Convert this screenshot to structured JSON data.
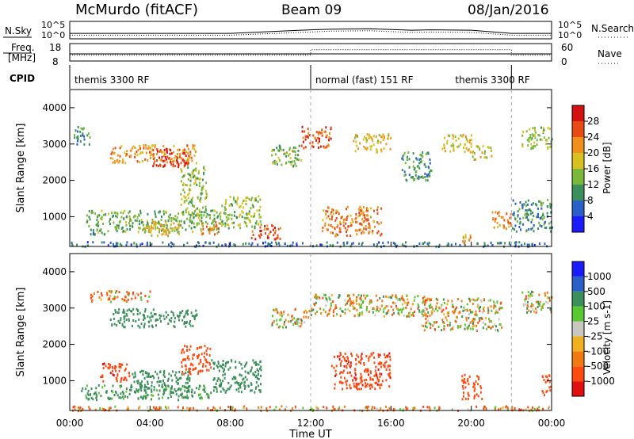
{
  "header": {
    "station": "McMurdo (fitACF)",
    "beam": "Beam 09",
    "date": "08/Jan/2016"
  },
  "side_labels": {
    "nsky": "N.Sky",
    "freq_line1": "Freq.",
    "freq_line2": "[MHz]",
    "cpid": "CPID",
    "nsearch": "N.Search",
    "nave": "Nave"
  },
  "noise_ticks": {
    "top": "10^5",
    "bottom": "10^0"
  },
  "freq_ticks": {
    "top": "18",
    "bottom": "8"
  },
  "nave_ticks": {
    "top": "60",
    "bottom": "0"
  },
  "cpid_segments": [
    {
      "label": "themis 3300 RF",
      "start_hour": 0,
      "end_hour": 12
    },
    {
      "label": "normal (fast) 151 RF",
      "start_hour": 12,
      "end_hour": 22
    },
    {
      "label": "themis 3300 RF",
      "start_hour": 22,
      "end_hour": 24
    }
  ],
  "xaxis": {
    "title": "Time UT",
    "ticks": [
      "00:00",
      "04:00",
      "08:00",
      "12:00",
      "16:00",
      "20:00",
      "00:00"
    ]
  },
  "ylabel": "Slant Range [km]",
  "yticks": [
    "1000",
    "2000",
    "3000",
    "4000"
  ],
  "power_colorbar": {
    "title": "Power [dB]",
    "ticks": [
      "4",
      "8",
      "12",
      "16",
      "20",
      "24",
      "28"
    ]
  },
  "velocity_colorbar": {
    "title": "Velocity [m s-1]",
    "ticks": [
      "1000",
      "500",
      "100",
      "25",
      "-25",
      "-100",
      "-500",
      "-1000"
    ]
  },
  "chart_data": [
    {
      "type": "heatmap",
      "title": "Power",
      "xlabel": "Time UT",
      "ylabel": "Slant Range [km]",
      "xlim": [
        0,
        24
      ],
      "ylim": [
        180,
        4500
      ],
      "zlabel": "Power [dB]",
      "zlim": [
        0,
        30
      ],
      "colors": [
        "#1a1aff",
        "#2a5fc8",
        "#3a8f5a",
        "#7ab83a",
        "#d8c020",
        "#f0901a",
        "#e84a14",
        "#d41010"
      ],
      "features": [
        {
          "t0": 0.0,
          "t1": 24.0,
          "r0": 200,
          "r1": 330,
          "power": 7
        },
        {
          "t0": 0.2,
          "t1": 1.0,
          "r0": 3000,
          "r1": 3500,
          "power": 9
        },
        {
          "t0": 1.0,
          "t1": 2.0,
          "r0": 500,
          "r1": 700,
          "power": 10
        },
        {
          "t0": 2.0,
          "t1": 6.3,
          "r0": 2500,
          "r1": 3000,
          "power": 20
        },
        {
          "t0": 4.0,
          "t1": 6.0,
          "r0": 2400,
          "r1": 2900,
          "power": 26
        },
        {
          "t0": 5.5,
          "t1": 6.8,
          "r0": 1000,
          "r1": 2400,
          "power": 14
        },
        {
          "t0": 0.8,
          "t1": 7.5,
          "r0": 600,
          "r1": 1200,
          "power": 12
        },
        {
          "t0": 3.5,
          "t1": 5.5,
          "r0": 500,
          "r1": 900,
          "power": 18
        },
        {
          "t0": 6.5,
          "t1": 7.5,
          "r0": 500,
          "r1": 900,
          "power": 22
        },
        {
          "t0": 7.5,
          "t1": 9.5,
          "r0": 700,
          "r1": 1600,
          "power": 14
        },
        {
          "t0": 9.0,
          "t1": 10.5,
          "r0": 400,
          "r1": 800,
          "power": 24
        },
        {
          "t0": 10.0,
          "t1": 11.5,
          "r0": 2400,
          "r1": 3000,
          "power": 12
        },
        {
          "t0": 11.5,
          "t1": 13.0,
          "r0": 2900,
          "r1": 3500,
          "power": 24
        },
        {
          "t0": 12.5,
          "t1": 15.5,
          "r0": 500,
          "r1": 1300,
          "power": 22
        },
        {
          "t0": 14.0,
          "t1": 16.0,
          "r0": 2800,
          "r1": 3300,
          "power": 18
        },
        {
          "t0": 16.5,
          "t1": 18.0,
          "r0": 2000,
          "r1": 2800,
          "power": 10
        },
        {
          "t0": 18.5,
          "t1": 20.0,
          "r0": 2800,
          "r1": 3300,
          "power": 18
        },
        {
          "t0": 20.0,
          "t1": 21.0,
          "r0": 2600,
          "r1": 3000,
          "power": 16
        },
        {
          "t0": 19.5,
          "t1": 20.0,
          "r0": 300,
          "r1": 600,
          "power": 20
        },
        {
          "t0": 21.0,
          "t1": 22.0,
          "r0": 700,
          "r1": 1200,
          "power": 22
        },
        {
          "t0": 22.5,
          "t1": 24.0,
          "r0": 2900,
          "r1": 3500,
          "power": 14
        },
        {
          "t0": 22.0,
          "t1": 24.0,
          "r0": 600,
          "r1": 1500,
          "power": 9
        }
      ]
    },
    {
      "type": "heatmap",
      "title": "Velocity",
      "xlabel": "Time UT",
      "ylabel": "Slant Range [km]",
      "xlim": [
        0,
        24
      ],
      "ylim": [
        180,
        4500
      ],
      "zlabel": "Velocity [m s-1]",
      "zlim": [
        -1000,
        1000
      ],
      "colors": [
        "#e01010",
        "#ff4a10",
        "#f07a10",
        "#f0b020",
        "#c8c8c0",
        "#5ac830",
        "#3a8f5a",
        "#2a5fc8",
        "#1a1aff"
      ],
      "features": [
        {
          "t0": 0.0,
          "t1": 24.0,
          "r0": 200,
          "r1": 330,
          "velocity": -50
        },
        {
          "t0": 1.0,
          "t1": 4.0,
          "r0": 3200,
          "r1": 3500,
          "velocity": -100
        },
        {
          "t0": 2.0,
          "t1": 6.3,
          "r0": 2500,
          "r1": 3000,
          "velocity": 300
        },
        {
          "t0": 0.5,
          "t1": 7.0,
          "r0": 500,
          "r1": 900,
          "velocity": 200
        },
        {
          "t0": 3.0,
          "t1": 6.0,
          "r0": 700,
          "r1": 1300,
          "velocity": 250
        },
        {
          "t0": 5.5,
          "t1": 7.0,
          "r0": 1200,
          "r1": 2000,
          "velocity": -300
        },
        {
          "t0": 7.0,
          "t1": 9.5,
          "r0": 700,
          "r1": 1600,
          "velocity": 250
        },
        {
          "t0": 1.5,
          "t1": 3.0,
          "r0": 1000,
          "r1": 1500,
          "velocity": -400
        },
        {
          "t0": 10.0,
          "t1": 12.0,
          "r0": 2500,
          "r1": 3000,
          "velocity": 0
        },
        {
          "t0": 12.0,
          "t1": 18.0,
          "r0": 2800,
          "r1": 3400,
          "velocity": 0
        },
        {
          "t0": 13.0,
          "t1": 16.0,
          "r0": 800,
          "r1": 1800,
          "velocity": -400
        },
        {
          "t0": 17.5,
          "t1": 21.5,
          "r0": 2400,
          "r1": 3300,
          "velocity": 0
        },
        {
          "t0": 19.5,
          "t1": 20.5,
          "r0": 500,
          "r1": 1200,
          "velocity": -300
        },
        {
          "t0": 22.5,
          "t1": 24.0,
          "r0": 2900,
          "r1": 3500,
          "velocity": 0
        },
        {
          "t0": 23.5,
          "t1": 24.0,
          "r0": 600,
          "r1": 1200,
          "velocity": -300
        }
      ]
    },
    {
      "type": "line",
      "title": "N.Sky / N.Search",
      "xlim": [
        0,
        24
      ],
      "ylim": [
        1,
        100000
      ],
      "log_y": true,
      "series": [
        {
          "name": "N.Sky",
          "x": [
            0,
            4,
            8,
            12,
            13,
            15,
            17,
            18,
            20,
            22,
            24
          ],
          "values": [
            30,
            30,
            30,
            400,
            600,
            800,
            300,
            400,
            300,
            30,
            30
          ]
        },
        {
          "name": "N.Search",
          "x": [
            0,
            4,
            8,
            12,
            13,
            15,
            17,
            18,
            20,
            22,
            24
          ],
          "values": [
            8,
            8,
            8,
            80,
            150,
            200,
            60,
            80,
            60,
            8,
            8
          ]
        }
      ]
    },
    {
      "type": "line",
      "title": "Freq / Nave",
      "xlim": [
        0,
        24
      ],
      "series": [
        {
          "name": "Freq.",
          "x": [
            0,
            24
          ],
          "values": [
            12,
            12
          ]
        },
        {
          "name": "Nave",
          "x": [
            0,
            12,
            12,
            22,
            22,
            24
          ],
          "values": [
            20,
            20,
            40,
            40,
            20,
            20
          ]
        }
      ]
    }
  ]
}
